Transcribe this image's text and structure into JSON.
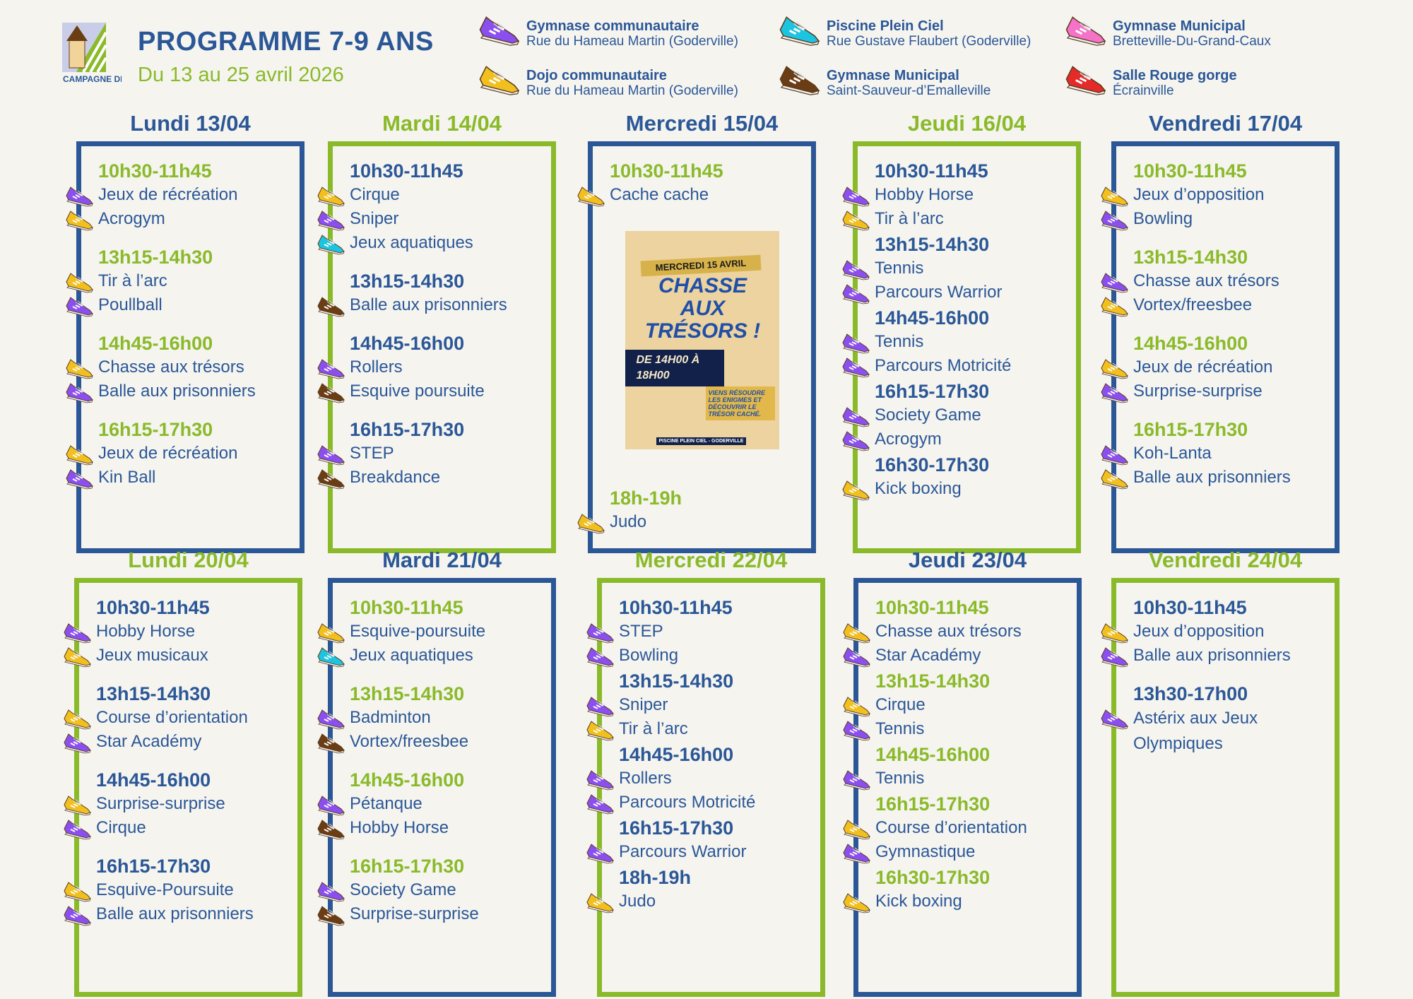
{
  "header": {
    "logo_text": "CAMPAGNE DE CAUX",
    "title": "PROGRAMME 7-9 ANS",
    "subtitle": "Du 13 au 25 avril 2026"
  },
  "colors": {
    "blue": "#2b5797",
    "green": "#8aba2a"
  },
  "shoes": {
    "purple": "#8b4ff0",
    "yellow": "#f2c01e",
    "cyan": "#1cc4df",
    "brown": "#6b3d14",
    "pink": "#f572c8",
    "red": "#e52a2a"
  },
  "legend": [
    {
      "name": "Gymnase communautaire",
      "address": "Rue du Hameau Martin (Goderville)",
      "shoe": "purple",
      "icon": "purple-sneaker-icon"
    },
    {
      "name": "Piscine Plein Ciel",
      "address": "Rue Gustave Flaubert (Goderville)",
      "shoe": "cyan",
      "icon": "cyan-sneaker-icon"
    },
    {
      "name": "Gymnase Municipal",
      "address": "Bretteville-Du-Grand-Caux",
      "shoe": "pink",
      "icon": "pink-sneaker-icon"
    },
    {
      "name": "Dojo communautaire",
      "address": "Rue du Hameau Martin (Goderville)",
      "shoe": "yellow",
      "icon": "yellow-sneaker-icon"
    },
    {
      "name": "Gymnase Municipal",
      "address": "Saint-Sauveur-d’Emalleville",
      "shoe": "brown",
      "icon": "brown-sneaker-icon"
    },
    {
      "name": "Salle Rouge gorge",
      "address": "Écrainville",
      "shoe": "red",
      "icon": "red-sneaker-icon"
    }
  ],
  "days": [
    {
      "title": "Lundi 13/04",
      "color": "blue",
      "slots": [
        {
          "time": "10h30-11h45",
          "activities": [
            {
              "name": "Jeux de récréation",
              "shoe": "purple"
            },
            {
              "name": "Acrogym",
              "shoe": "yellow"
            }
          ]
        },
        {
          "time": "13h15-14h30",
          "activities": [
            {
              "name": "Tir à l’arc",
              "shoe": "yellow"
            },
            {
              "name": "Poullball",
              "shoe": "purple"
            }
          ]
        },
        {
          "time": "14h45-16h00",
          "activities": [
            {
              "name": "Chasse aux trésors",
              "shoe": "yellow"
            },
            {
              "name": "Balle aux prisonniers",
              "shoe": "purple"
            }
          ]
        },
        {
          "time": "16h15-17h30",
          "activities": [
            {
              "name": "Jeux de récréation",
              "shoe": "yellow"
            },
            {
              "name": "Kin Ball",
              "shoe": "purple"
            }
          ]
        }
      ]
    },
    {
      "title": "Mardi 14/04",
      "color": "green",
      "slots": [
        {
          "time": "10h30-11h45",
          "activities": [
            {
              "name": "Cirque",
              "shoe": "yellow"
            },
            {
              "name": "Sniper",
              "shoe": "purple"
            },
            {
              "name": "Jeux aquatiques",
              "shoe": "cyan"
            }
          ]
        },
        {
          "time": "13h15-14h30",
          "activities": [
            {
              "name": "Balle aux prisonniers",
              "shoe": "brown"
            }
          ]
        },
        {
          "time": "14h45-16h00",
          "activities": [
            {
              "name": "Rollers",
              "shoe": "purple"
            },
            {
              "name": "Esquive poursuite",
              "shoe": "brown"
            }
          ]
        },
        {
          "time": "16h15-17h30",
          "activities": [
            {
              "name": "STEP",
              "shoe": "purple"
            },
            {
              "name": "Breakdance",
              "shoe": "brown"
            }
          ]
        }
      ]
    },
    {
      "title": "Mercredi 15/04",
      "color": "blue",
      "poster": {
        "ribbon": "MERCREDI 15 AVRIL",
        "headline": "CHASSE AUX TRÉSORS !",
        "hours": "DE 14H00 À 18H00",
        "blurb": "VIENS RÉSOUDRE LES ENIGMES ET DÉCOUVRIR LE TRÉSOR CACHÉ.",
        "footer": "PISCINE PLEIN CIEL - GODERVILLE"
      },
      "slots": [
        {
          "time": "10h30-11h45",
          "activities": [
            {
              "name": "Cache cache",
              "shoe": "yellow"
            }
          ]
        },
        {
          "time": "18h-19h",
          "activities": [
            {
              "name": "Judo",
              "shoe": "yellow"
            }
          ]
        }
      ]
    },
    {
      "title": "Jeudi 16/04",
      "color": "green",
      "slots": [
        {
          "time": "10h30-11h45",
          "activities": [
            {
              "name": "Hobby Horse",
              "shoe": "purple"
            },
            {
              "name": "Tir à l’arc",
              "shoe": "yellow"
            }
          ]
        },
        {
          "time": "13h15-14h30",
          "activities": [
            {
              "name": "Tennis",
              "shoe": "purple"
            },
            {
              "name": "Parcours Warrior",
              "shoe": "purple"
            }
          ]
        },
        {
          "time": "14h45-16h00",
          "activities": [
            {
              "name": "Tennis",
              "shoe": "purple"
            },
            {
              "name": "Parcours Motricité",
              "shoe": "purple"
            }
          ]
        },
        {
          "time": "16h15-17h30",
          "activities": [
            {
              "name": "Society Game",
              "shoe": "purple"
            },
            {
              "name": "Acrogym",
              "shoe": "purple"
            }
          ]
        },
        {
          "time": "16h30-17h30",
          "activities": [
            {
              "name": "Kick boxing",
              "shoe": "yellow"
            }
          ]
        }
      ]
    },
    {
      "title": "Vendredi 17/04",
      "color": "blue",
      "slots": [
        {
          "time": "10h30-11h45",
          "activities": [
            {
              "name": "Jeux d’opposition",
              "shoe": "yellow"
            },
            {
              "name": "Bowling",
              "shoe": "purple"
            }
          ]
        },
        {
          "time": "13h15-14h30",
          "activities": [
            {
              "name": "Chasse aux trésors",
              "shoe": "purple"
            },
            {
              "name": "Vortex/freesbee",
              "shoe": "yellow"
            }
          ]
        },
        {
          "time": "14h45-16h00",
          "activities": [
            {
              "name": "Jeux de récréation",
              "shoe": "yellow"
            },
            {
              "name": "Surprise-surprise",
              "shoe": "purple"
            }
          ]
        },
        {
          "time": "16h15-17h30",
          "activities": [
            {
              "name": "Koh-Lanta",
              "shoe": "purple"
            },
            {
              "name": "Balle aux prisonniers",
              "shoe": "yellow"
            }
          ]
        }
      ]
    },
    {
      "title": "Lundi 20/04",
      "color": "green",
      "slots": [
        {
          "time": "10h30-11h45",
          "activities": [
            {
              "name": "Hobby Horse",
              "shoe": "purple"
            },
            {
              "name": "Jeux musicaux",
              "shoe": "yellow"
            }
          ]
        },
        {
          "time": "13h15-14h30",
          "activities": [
            {
              "name": "Course d’orientation",
              "shoe": "yellow"
            },
            {
              "name": "Star Académy",
              "shoe": "purple"
            }
          ]
        },
        {
          "time": "14h45-16h00",
          "activities": [
            {
              "name": "Surprise-surprise",
              "shoe": "yellow"
            },
            {
              "name": "Cirque",
              "shoe": "purple"
            }
          ]
        },
        {
          "time": "16h15-17h30",
          "activities": [
            {
              "name": "Esquive-Poursuite",
              "shoe": "yellow"
            },
            {
              "name": "Balle aux prisonniers",
              "shoe": "purple"
            }
          ]
        }
      ]
    },
    {
      "title": "Mardi 21/04",
      "color": "blue",
      "slots": [
        {
          "time": "10h30-11h45",
          "activities": [
            {
              "name": "Esquive-poursuite",
              "shoe": "yellow"
            },
            {
              "name": "Jeux aquatiques",
              "shoe": "cyan"
            }
          ]
        },
        {
          "time": "13h15-14h30",
          "activities": [
            {
              "name": "Badminton",
              "shoe": "purple"
            },
            {
              "name": "Vortex/freesbee",
              "shoe": "brown"
            }
          ]
        },
        {
          "time": "14h45-16h00",
          "activities": [
            {
              "name": "Pétanque",
              "shoe": "purple"
            },
            {
              "name": "Hobby Horse",
              "shoe": "brown"
            }
          ]
        },
        {
          "time": "16h15-17h30",
          "activities": [
            {
              "name": "Society Game",
              "shoe": "purple"
            },
            {
              "name": "Surprise-surprise",
              "shoe": "brown"
            }
          ]
        }
      ]
    },
    {
      "title": "Mercredi 22/04",
      "color": "green",
      "slots": [
        {
          "time": "10h30-11h45",
          "activities": [
            {
              "name": "STEP",
              "shoe": "purple"
            },
            {
              "name": "Bowling",
              "shoe": "purple"
            }
          ]
        },
        {
          "time": "13h15-14h30",
          "activities": [
            {
              "name": "Sniper",
              "shoe": "purple"
            },
            {
              "name": "Tir à l’arc",
              "shoe": "yellow"
            }
          ]
        },
        {
          "time": "14h45-16h00",
          "activities": [
            {
              "name": "Rollers",
              "shoe": "purple"
            },
            {
              "name": "Parcours Motricité",
              "shoe": "purple"
            }
          ]
        },
        {
          "time": "16h15-17h30",
          "activities": [
            {
              "name": "Parcours Warrior",
              "shoe": "purple"
            }
          ]
        },
        {
          "time": "18h-19h",
          "activities": [
            {
              "name": "Judo",
              "shoe": "yellow"
            }
          ]
        }
      ]
    },
    {
      "title": "Jeudi 23/04",
      "color": "blue",
      "slots": [
        {
          "time": "10h30-11h45",
          "activities": [
            {
              "name": "Chasse aux trésors",
              "shoe": "yellow"
            },
            {
              "name": "Star Académy",
              "shoe": "purple"
            }
          ]
        },
        {
          "time": "13h15-14h30",
          "activities": [
            {
              "name": "Cirque",
              "shoe": "yellow"
            },
            {
              "name": "Tennis",
              "shoe": "purple"
            }
          ]
        },
        {
          "time": "14h45-16h00",
          "activities": [
            {
              "name": "Tennis",
              "shoe": "purple"
            }
          ]
        },
        {
          "time": "16h15-17h30",
          "activities": [
            {
              "name": "Course d’orientation",
              "shoe": "yellow"
            },
            {
              "name": "Gymnastique",
              "shoe": "purple"
            }
          ]
        },
        {
          "time": "16h30-17h30",
          "activities": [
            {
              "name": "Kick boxing",
              "shoe": "yellow"
            }
          ]
        }
      ]
    },
    {
      "title": "Vendredi 24/04",
      "color": "green",
      "slots": [
        {
          "time": "10h30-11h45",
          "activities": [
            {
              "name": "Jeux d’opposition",
              "shoe": "yellow"
            },
            {
              "name": "Balle aux prisonniers",
              "shoe": "purple"
            }
          ]
        },
        {
          "time": "13h30-17h00",
          "activities": [
            {
              "name": "Astérix aux Jeux Olympiques",
              "shoe": "purple"
            }
          ]
        }
      ]
    }
  ]
}
